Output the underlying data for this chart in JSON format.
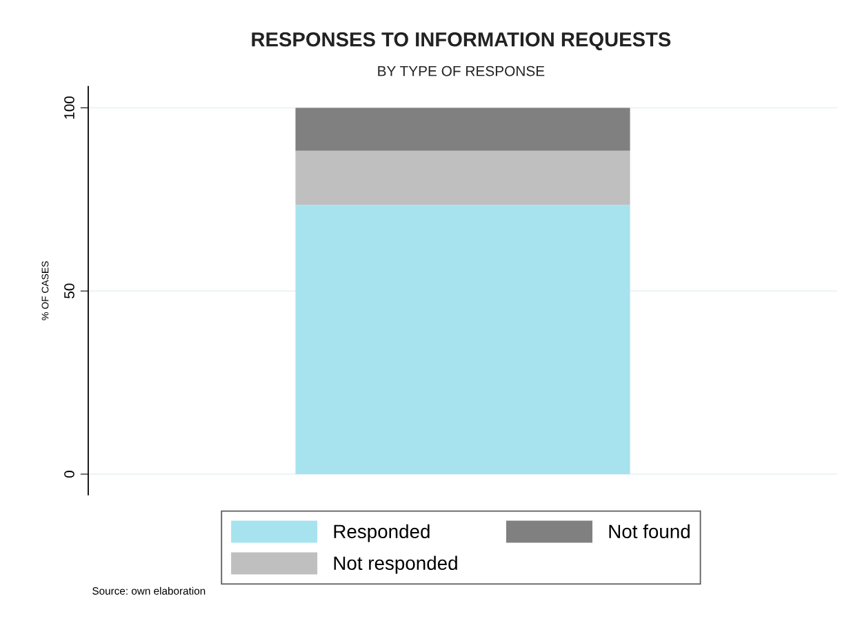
{
  "chart_data": {
    "type": "bar",
    "stacked": true,
    "title": "RESPONSES TO INFORMATION REQUESTS",
    "subtitle": "BY TYPE OF RESPONSE",
    "ylabel": "% OF CASES",
    "categories": [
      null
    ],
    "series": [
      {
        "name": "Responded",
        "color": "#a6e3ef",
        "values": [
          73.5
        ]
      },
      {
        "name": "Not responded",
        "color": "#bfbfbf",
        "values": [
          14.8
        ]
      },
      {
        "name": "Not found",
        "color": "#808080",
        "values": [
          11.7
        ]
      }
    ],
    "ylim": [
      -5.6,
      105.8
    ],
    "yticks": [
      0,
      50,
      100
    ],
    "grid": "y",
    "legend": "bottom",
    "annotations": [
      "Source: own elaboration"
    ]
  }
}
